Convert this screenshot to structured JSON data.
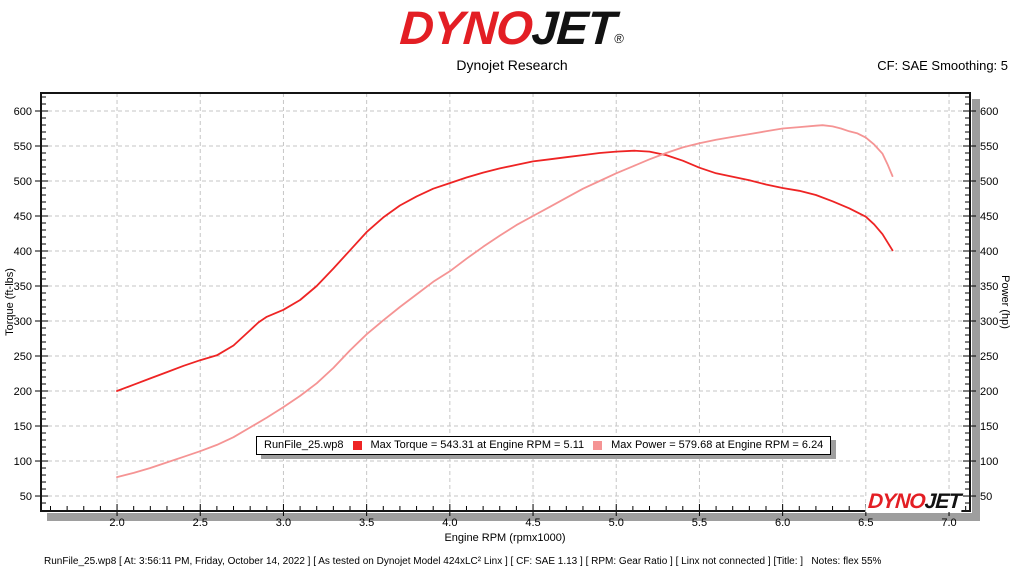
{
  "header": {
    "logo_dyno": "DYNO",
    "logo_jet": "JET",
    "registered": "®",
    "subtitle": "Dynojet Research",
    "cf_label": "CF: SAE Smoothing: 5"
  },
  "legend": {
    "file": "RunFile_25.wp8",
    "torque_label": "Max Torque = 543.31 at Engine RPM = 5.11",
    "power_label": "Max Power = 579.68 at Engine RPM = 6.24"
  },
  "watermark": {
    "logo_dyno": "DYNO",
    "logo_jet": "JET"
  },
  "status_bar": {
    "text": "RunFile_25.wp8 [ At: 3:56:11 PM, Friday, October 14, 2022 ] [ As tested on Dynojet Model 424xLC² Linx ] [ CF: SAE 1.13 ] [ RPM: Gear Ratio ] [ Linx not connected ] [Title: ]   Notes: flex 55%"
  },
  "colors": {
    "torque": "#ee2424",
    "power": "#f59494",
    "grid": "#c6c6c6",
    "shadow": "#9e9e9e",
    "frame": "#141414",
    "logo_red": "#e31e24"
  },
  "chart_data": {
    "type": "line",
    "title": "Dynojet Research",
    "xlabel": "Engine RPM (rpmx1000)",
    "ylabel_left": "Torque (ft-lbs)",
    "ylabel_right": "Power (hp)",
    "x_ticks": [
      "2.0",
      "2.5",
      "3.0",
      "3.5",
      "4.0",
      "4.5",
      "5.0",
      "5.5",
      "6.0",
      "6.5",
      "7.0"
    ],
    "y_ticks": [
      "600",
      "550",
      "500",
      "450",
      "400",
      "350",
      "300",
      "250",
      "200",
      "150",
      "100",
      "50"
    ],
    "max_torque": {
      "value": 543.31,
      "rpm": 5.11
    },
    "max_power": {
      "value": 579.68,
      "rpm": 6.24
    },
    "series": [
      {
        "name": "Torque",
        "unit": "ft-lbs",
        "axis": "left",
        "color_key": "torque",
        "points": [
          [
            2.0,
            200
          ],
          [
            2.1,
            209
          ],
          [
            2.2,
            218
          ],
          [
            2.3,
            227
          ],
          [
            2.4,
            236
          ],
          [
            2.5,
            244
          ],
          [
            2.6,
            251
          ],
          [
            2.7,
            265
          ],
          [
            2.8,
            287
          ],
          [
            2.85,
            298
          ],
          [
            2.9,
            306
          ],
          [
            3.0,
            316
          ],
          [
            3.1,
            330
          ],
          [
            3.2,
            350
          ],
          [
            3.3,
            375
          ],
          [
            3.4,
            401
          ],
          [
            3.5,
            427
          ],
          [
            3.6,
            448
          ],
          [
            3.7,
            465
          ],
          [
            3.8,
            478
          ],
          [
            3.9,
            489
          ],
          [
            4.0,
            497
          ],
          [
            4.1,
            505
          ],
          [
            4.2,
            512
          ],
          [
            4.3,
            518
          ],
          [
            4.4,
            523
          ],
          [
            4.5,
            528
          ],
          [
            4.6,
            531
          ],
          [
            4.7,
            534
          ],
          [
            4.8,
            537
          ],
          [
            4.9,
            540
          ],
          [
            5.0,
            542
          ],
          [
            5.11,
            543.3
          ],
          [
            5.2,
            542
          ],
          [
            5.3,
            537
          ],
          [
            5.4,
            529
          ],
          [
            5.5,
            519
          ],
          [
            5.6,
            511
          ],
          [
            5.7,
            506
          ],
          [
            5.8,
            501
          ],
          [
            5.9,
            495
          ],
          [
            6.0,
            490
          ],
          [
            6.1,
            486
          ],
          [
            6.2,
            480
          ],
          [
            6.3,
            471
          ],
          [
            6.4,
            461
          ],
          [
            6.5,
            449
          ],
          [
            6.55,
            438
          ],
          [
            6.6,
            424
          ],
          [
            6.66,
            401
          ]
        ]
      },
      {
        "name": "Power",
        "unit": "hp",
        "axis": "right",
        "color_key": "power",
        "points": [
          [
            2.0,
            77
          ],
          [
            2.1,
            83
          ],
          [
            2.2,
            90
          ],
          [
            2.3,
            98
          ],
          [
            2.4,
            106
          ],
          [
            2.5,
            114
          ],
          [
            2.6,
            123
          ],
          [
            2.7,
            134
          ],
          [
            2.8,
            148
          ],
          [
            2.9,
            162
          ],
          [
            3.0,
            177
          ],
          [
            3.1,
            193
          ],
          [
            3.2,
            211
          ],
          [
            3.3,
            233
          ],
          [
            3.4,
            258
          ],
          [
            3.5,
            281
          ],
          [
            3.6,
            301
          ],
          [
            3.7,
            320
          ],
          [
            3.8,
            338
          ],
          [
            3.9,
            356
          ],
          [
            4.0,
            371
          ],
          [
            4.1,
            389
          ],
          [
            4.2,
            406
          ],
          [
            4.3,
            422
          ],
          [
            4.4,
            437
          ],
          [
            4.5,
            450
          ],
          [
            4.6,
            463
          ],
          [
            4.7,
            476
          ],
          [
            4.8,
            489
          ],
          [
            4.9,
            500
          ],
          [
            5.0,
            511
          ],
          [
            5.1,
            521
          ],
          [
            5.2,
            531
          ],
          [
            5.3,
            540
          ],
          [
            5.4,
            548
          ],
          [
            5.5,
            554
          ],
          [
            5.6,
            559
          ],
          [
            5.7,
            563
          ],
          [
            5.8,
            567
          ],
          [
            5.9,
            571
          ],
          [
            6.0,
            575
          ],
          [
            6.1,
            577
          ],
          [
            6.2,
            579
          ],
          [
            6.24,
            579.7
          ],
          [
            6.3,
            578
          ],
          [
            6.35,
            575
          ],
          [
            6.4,
            571
          ],
          [
            6.45,
            568
          ],
          [
            6.5,
            562
          ],
          [
            6.55,
            552
          ],
          [
            6.6,
            539
          ],
          [
            6.63,
            524
          ],
          [
            6.66,
            507
          ]
        ]
      }
    ],
    "layout": {
      "x_range": [
        1.543,
        7.126
      ],
      "y_range": [
        28.6,
        625.7
      ],
      "x_major_step": 0.5,
      "x_minor_step": 0.1,
      "y_major_step": 50,
      "y_minor_step": 10,
      "grid": "dashed",
      "legend_position": "inside-bottom-center"
    }
  }
}
